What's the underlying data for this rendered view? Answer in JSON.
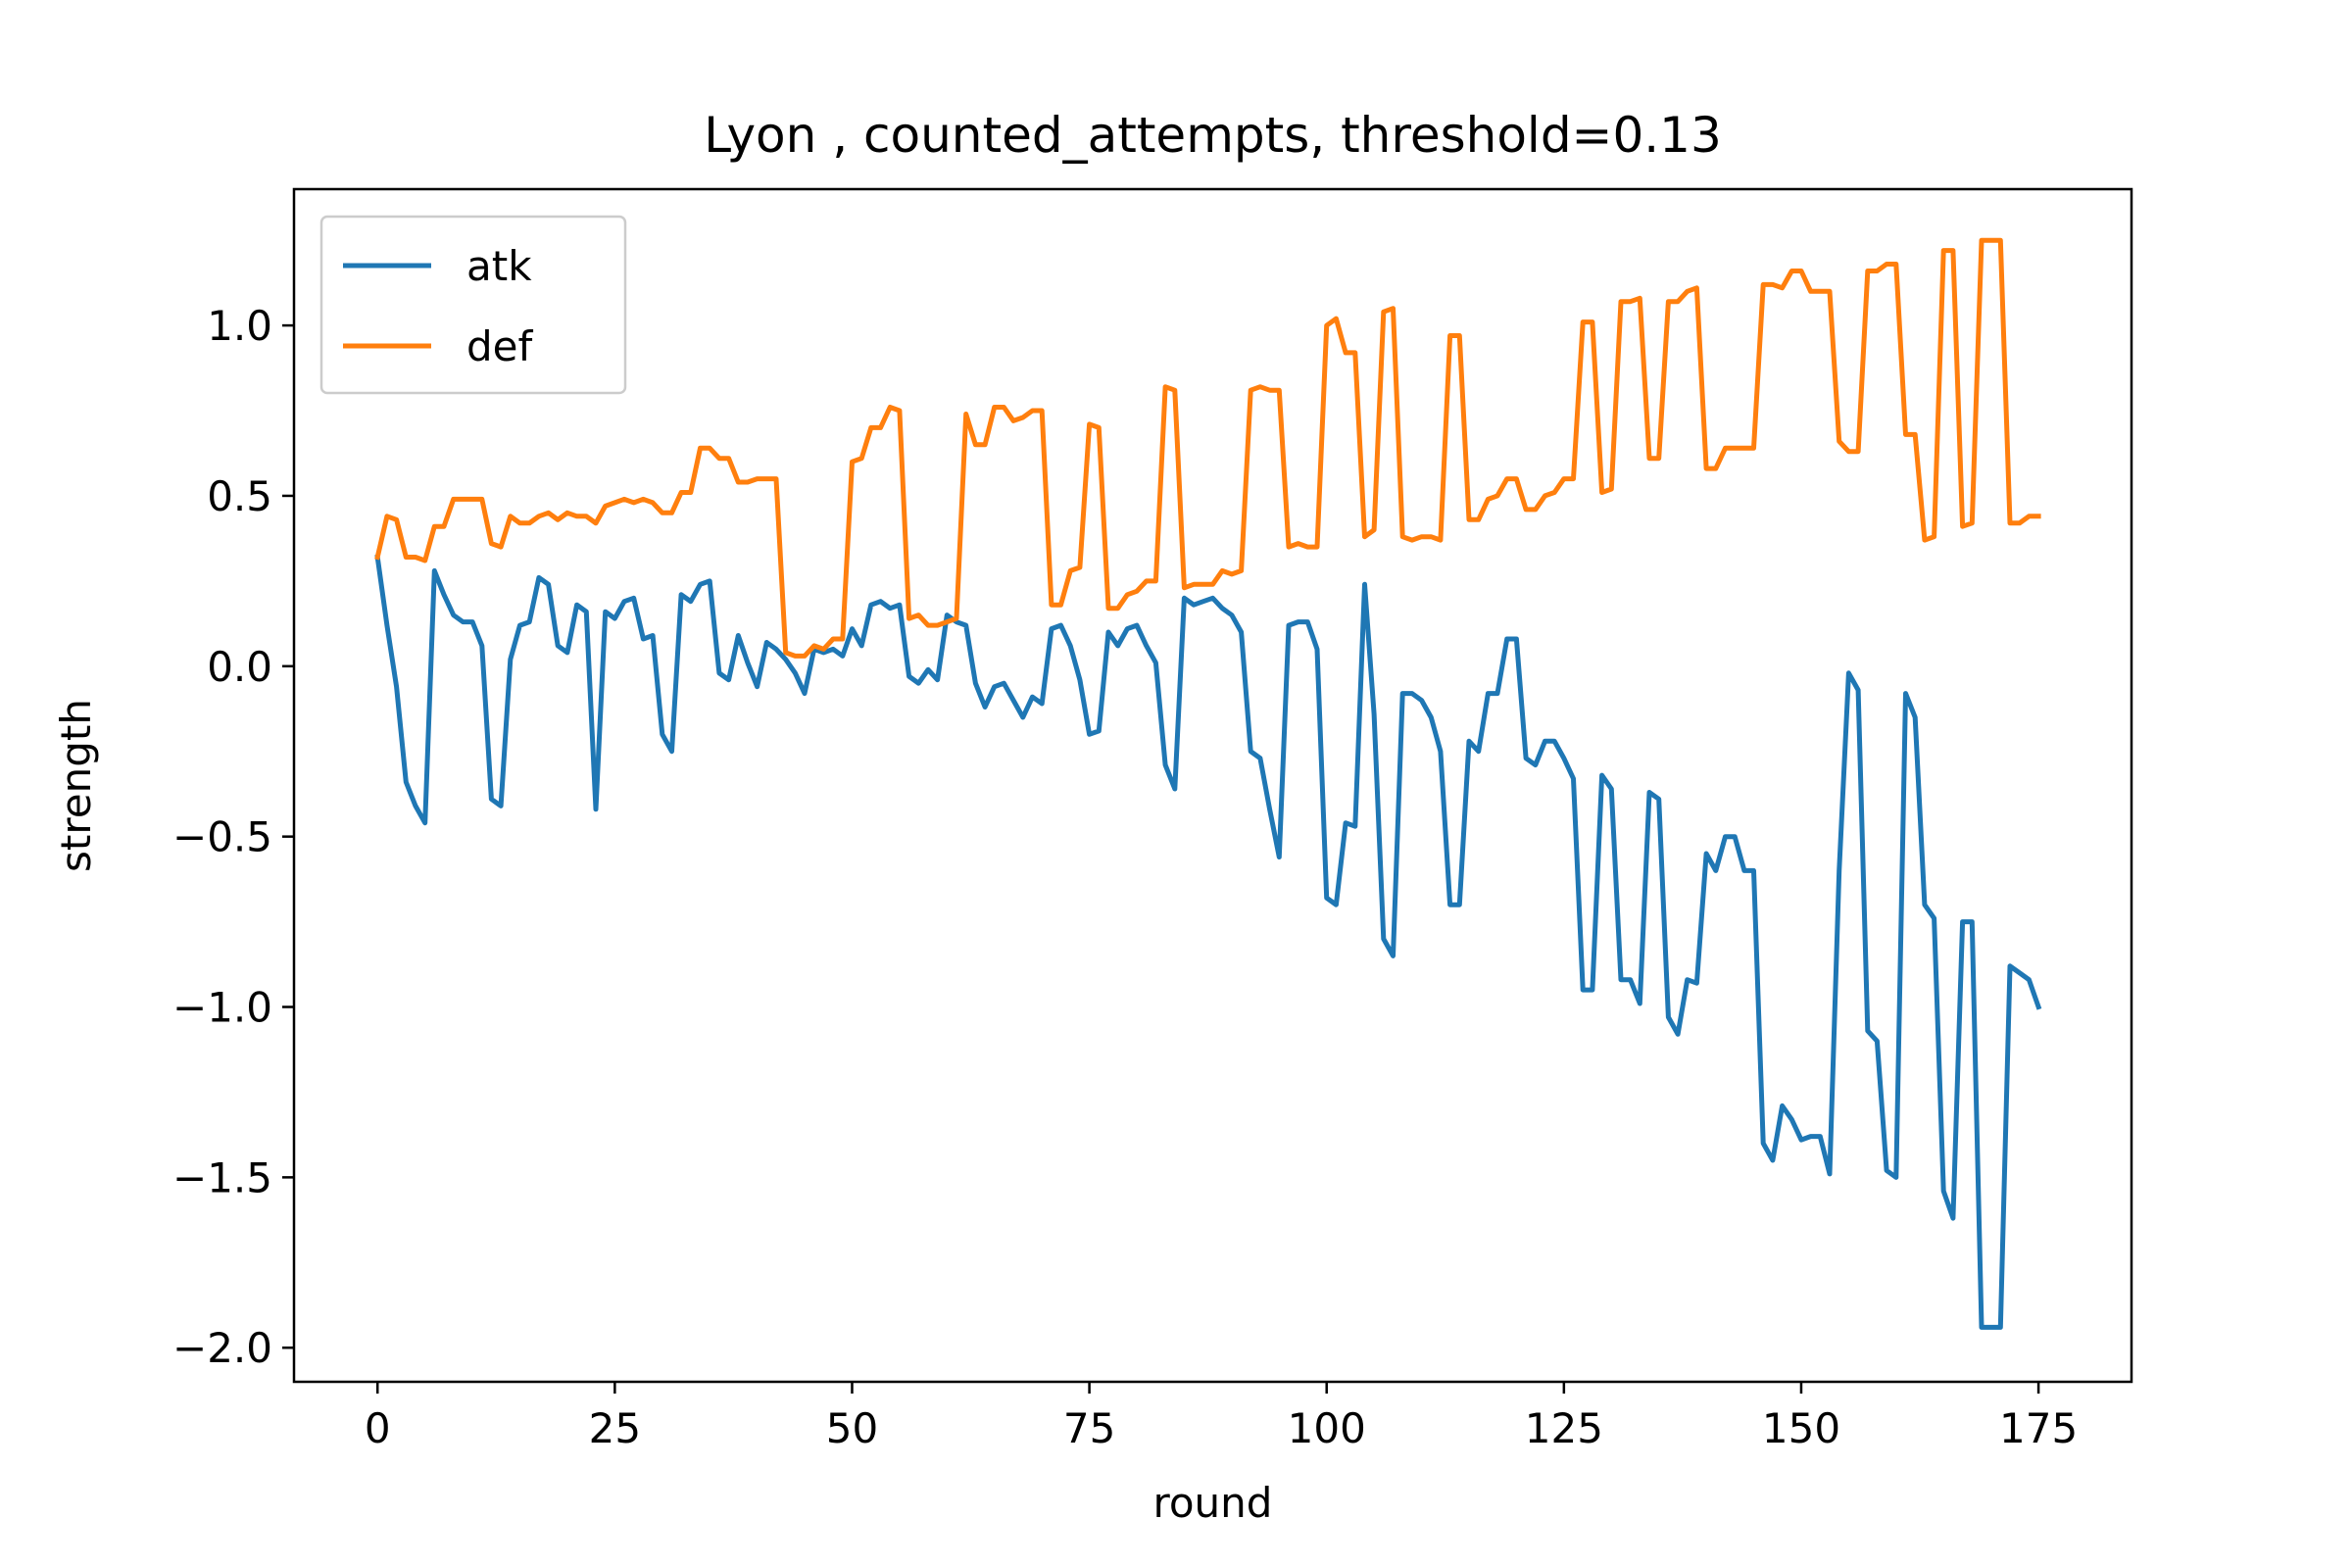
{
  "chart_data": {
    "type": "line",
    "title": "Lyon , counted_attempts, threshold=0.13",
    "xlabel": "round",
    "ylabel": "strength",
    "xlim": [
      -8.8,
      184.8
    ],
    "ylim": [
      -2.1,
      1.4
    ],
    "xticks": [
      0,
      25,
      50,
      75,
      100,
      125,
      150,
      175
    ],
    "yticks": [
      -2.0,
      -1.5,
      -1.0,
      -0.5,
      0.0,
      0.5,
      1.0
    ],
    "xtick_labels": [
      "0",
      "25",
      "50",
      "75",
      "100",
      "125",
      "150",
      "175"
    ],
    "ytick_labels": [
      "−2.0",
      "−1.5",
      "−1.0",
      "−0.5",
      "0.0",
      "0.5",
      "1.0"
    ],
    "grid": false,
    "legend_position": "upper-left",
    "series": [
      {
        "name": "atk",
        "color": "#1f77b4",
        "x": [
          0,
          1,
          2,
          3,
          4,
          5,
          6,
          7,
          8,
          9,
          10,
          11,
          12,
          13,
          14,
          15,
          16,
          17,
          18,
          19,
          20,
          21,
          22,
          23,
          24,
          25,
          26,
          27,
          28,
          29,
          30,
          31,
          32,
          33,
          34,
          35,
          36,
          37,
          38,
          39,
          40,
          41,
          42,
          43,
          44,
          45,
          46,
          47,
          48,
          49,
          50,
          51,
          52,
          53,
          54,
          55,
          56,
          57,
          58,
          59,
          60,
          61,
          62,
          63,
          64,
          65,
          66,
          67,
          68,
          69,
          70,
          71,
          72,
          73,
          74,
          75,
          76,
          77,
          78,
          79,
          80,
          81,
          82,
          83,
          84,
          85,
          86,
          87,
          88,
          89,
          90,
          91,
          92,
          93,
          94,
          95,
          96,
          97,
          98,
          99,
          100,
          101,
          102,
          103,
          104,
          105,
          106,
          107,
          108,
          109,
          110,
          111,
          112,
          113,
          114,
          115,
          116,
          117,
          118,
          119,
          120,
          121,
          122,
          123,
          124,
          125,
          126,
          127,
          128,
          129,
          130,
          131,
          132,
          133,
          134,
          135,
          136,
          137,
          138,
          139,
          140,
          141,
          142,
          143,
          144,
          145,
          146,
          147,
          148,
          149,
          150,
          151,
          152,
          153,
          154,
          155,
          156,
          157,
          158,
          159,
          160,
          161,
          162,
          163,
          164,
          165,
          166,
          167,
          168,
          169,
          170,
          171,
          172,
          173,
          174,
          175
        ],
        "values": [
          0.32,
          0.12,
          -0.06,
          -0.34,
          -0.41,
          -0.46,
          0.28,
          0.21,
          0.15,
          0.13,
          0.13,
          0.06,
          -0.39,
          -0.41,
          0.02,
          0.12,
          0.13,
          0.26,
          0.24,
          0.06,
          0.04,
          0.18,
          0.16,
          -0.42,
          0.16,
          0.14,
          0.19,
          0.2,
          0.08,
          0.09,
          -0.2,
          -0.25,
          0.21,
          0.19,
          0.24,
          0.25,
          -0.02,
          -0.04,
          0.09,
          0.01,
          -0.06,
          0.07,
          0.05,
          0.02,
          -0.02,
          -0.08,
          0.05,
          0.04,
          0.05,
          0.03,
          0.11,
          0.06,
          0.18,
          0.19,
          0.17,
          0.18,
          -0.03,
          -0.05,
          -0.01,
          -0.04,
          0.15,
          0.13,
          0.12,
          -0.05,
          -0.12,
          -0.06,
          -0.05,
          -0.1,
          -0.15,
          -0.09,
          -0.11,
          0.11,
          0.12,
          0.06,
          -0.04,
          -0.2,
          -0.19,
          0.1,
          0.06,
          0.11,
          0.12,
          0.06,
          0.01,
          -0.29,
          -0.36,
          0.2,
          0.18,
          0.19,
          0.2,
          0.17,
          0.15,
          0.1,
          -0.25,
          -0.27,
          -0.42,
          -0.56,
          0.12,
          0.13,
          0.13,
          0.05,
          -0.68,
          -0.7,
          -0.46,
          -0.47,
          0.24,
          -0.14,
          -0.8,
          -0.85,
          -0.08,
          -0.08,
          -0.1,
          -0.15,
          -0.25,
          -0.7,
          -0.7,
          -0.22,
          -0.25,
          -0.08,
          -0.08,
          0.08,
          0.08,
          -0.27,
          -0.29,
          -0.22,
          -0.22,
          -0.27,
          -0.33,
          -0.95,
          -0.95,
          -0.32,
          -0.36,
          -0.92,
          -0.92,
          -0.99,
          -0.37,
          -0.39,
          -1.03,
          -1.08,
          -0.92,
          -0.93,
          -0.55,
          -0.6,
          -0.5,
          -0.5,
          -0.6,
          -0.6,
          -1.4,
          -1.45,
          -1.29,
          -1.33,
          -1.39,
          -1.38,
          -1.38,
          -1.49,
          -0.6,
          -0.02,
          -0.07,
          -1.07,
          -1.1,
          -1.48,
          -1.5,
          -0.08,
          -0.15,
          -0.7,
          -0.74,
          -1.54,
          -1.62,
          -0.75,
          -0.75,
          -1.94,
          -1.94,
          -1.94,
          -0.88,
          -0.9,
          -0.92,
          -1.0
        ]
      },
      {
        "name": "def",
        "color": "#ff7f0e",
        "x": [
          0,
          1,
          2,
          3,
          4,
          5,
          6,
          7,
          8,
          9,
          10,
          11,
          12,
          13,
          14,
          15,
          16,
          17,
          18,
          19,
          20,
          21,
          22,
          23,
          24,
          25,
          26,
          27,
          28,
          29,
          30,
          31,
          32,
          33,
          34,
          35,
          36,
          37,
          38,
          39,
          40,
          41,
          42,
          43,
          44,
          45,
          46,
          47,
          48,
          49,
          50,
          51,
          52,
          53,
          54,
          55,
          56,
          57,
          58,
          59,
          60,
          61,
          62,
          63,
          64,
          65,
          66,
          67,
          68,
          69,
          70,
          71,
          72,
          73,
          74,
          75,
          76,
          77,
          78,
          79,
          80,
          81,
          82,
          83,
          84,
          85,
          86,
          87,
          88,
          89,
          90,
          91,
          92,
          93,
          94,
          95,
          96,
          97,
          98,
          99,
          100,
          101,
          102,
          103,
          104,
          105,
          106,
          107,
          108,
          109,
          110,
          111,
          112,
          113,
          114,
          115,
          116,
          117,
          118,
          119,
          120,
          121,
          122,
          123,
          124,
          125,
          126,
          127,
          128,
          129,
          130,
          131,
          132,
          133,
          134,
          135,
          136,
          137,
          138,
          139,
          140,
          141,
          142,
          143,
          144,
          145,
          146,
          147,
          148,
          149,
          150,
          151,
          152,
          153,
          154,
          155,
          156,
          157,
          158,
          159,
          160,
          161,
          162,
          163,
          164,
          165,
          166,
          167,
          168,
          169,
          170,
          171,
          172,
          173,
          174,
          175
        ],
        "values": [
          0.32,
          0.44,
          0.43,
          0.32,
          0.32,
          0.31,
          0.41,
          0.41,
          0.49,
          0.49,
          0.49,
          0.49,
          0.36,
          0.35,
          0.44,
          0.42,
          0.42,
          0.44,
          0.45,
          0.43,
          0.45,
          0.44,
          0.44,
          0.42,
          0.47,
          0.48,
          0.49,
          0.48,
          0.49,
          0.48,
          0.45,
          0.45,
          0.51,
          0.51,
          0.64,
          0.64,
          0.61,
          0.61,
          0.54,
          0.54,
          0.55,
          0.55,
          0.55,
          0.04,
          0.03,
          0.03,
          0.06,
          0.05,
          0.08,
          0.08,
          0.6,
          0.61,
          0.7,
          0.7,
          0.76,
          0.75,
          0.14,
          0.15,
          0.12,
          0.12,
          0.13,
          0.14,
          0.74,
          0.65,
          0.65,
          0.76,
          0.76,
          0.72,
          0.73,
          0.75,
          0.75,
          0.18,
          0.18,
          0.28,
          0.29,
          0.71,
          0.7,
          0.17,
          0.17,
          0.21,
          0.22,
          0.25,
          0.25,
          0.82,
          0.81,
          0.23,
          0.24,
          0.24,
          0.24,
          0.28,
          0.27,
          0.28,
          0.81,
          0.82,
          0.81,
          0.81,
          0.35,
          0.36,
          0.35,
          0.35,
          1.0,
          1.02,
          0.92,
          0.92,
          0.38,
          0.4,
          1.04,
          1.05,
          0.38,
          0.37,
          0.38,
          0.38,
          0.37,
          0.97,
          0.97,
          0.43,
          0.43,
          0.49,
          0.5,
          0.55,
          0.55,
          0.46,
          0.46,
          0.5,
          0.51,
          0.55,
          0.55,
          1.01,
          1.01,
          0.51,
          0.52,
          1.07,
          1.07,
          1.08,
          0.61,
          0.61,
          1.07,
          1.07,
          1.1,
          1.11,
          0.58,
          0.58,
          0.64,
          0.64,
          0.64,
          0.64,
          1.12,
          1.12,
          1.11,
          1.16,
          1.16,
          1.1,
          1.1,
          1.1,
          0.66,
          0.63,
          0.63,
          1.16,
          1.16,
          1.18,
          1.18,
          0.68,
          0.68,
          0.37,
          0.38,
          1.22,
          1.22,
          0.41,
          0.42,
          1.25,
          1.25,
          1.25,
          0.42,
          0.42,
          0.44,
          0.44
        ]
      }
    ]
  }
}
